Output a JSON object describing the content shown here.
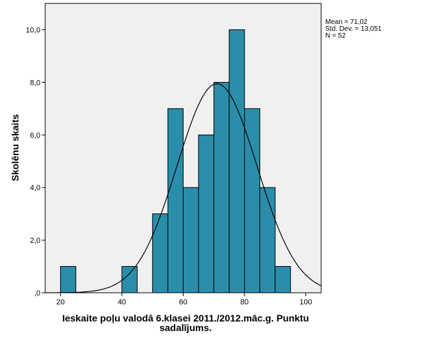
{
  "chart_data": {
    "type": "bar",
    "subtype": "histogram",
    "xlabel_lines": [
      "Ieskaite poļu valodā 6.klasei 2011./2012.māc.g. Punktu",
      "sadalījums."
    ],
    "ylabel": "Skolēnu skaits",
    "xlim": [
      15,
      105
    ],
    "ylim": [
      0,
      11
    ],
    "x_ticks": [
      20,
      40,
      60,
      80,
      100
    ],
    "x_tick_labels": [
      "20",
      "40",
      "60",
      "80",
      "100"
    ],
    "y_ticks": [
      0,
      2,
      4,
      6,
      8,
      10
    ],
    "y_tick_labels": [
      ",0",
      "2,0",
      "4,0",
      "6,0",
      "8,0",
      "10,0"
    ],
    "bin_width": 5,
    "bins": [
      {
        "start": 20,
        "end": 25,
        "count": 1
      },
      {
        "start": 40,
        "end": 45,
        "count": 1
      },
      {
        "start": 50,
        "end": 55,
        "count": 3
      },
      {
        "start": 55,
        "end": 60,
        "count": 7
      },
      {
        "start": 60,
        "end": 65,
        "count": 4
      },
      {
        "start": 65,
        "end": 70,
        "count": 6
      },
      {
        "start": 70,
        "end": 75,
        "count": 8
      },
      {
        "start": 75,
        "end": 80,
        "count": 10
      },
      {
        "start": 80,
        "end": 85,
        "count": 7
      },
      {
        "start": 85,
        "end": 90,
        "count": 4
      },
      {
        "start": 90,
        "end": 95,
        "count": 1
      }
    ],
    "normal_curve": {
      "mean": 71.02,
      "std": 13.051,
      "n": 52
    },
    "stats_labels": [
      "Mean = 71,02",
      "Std. Dev. = 13,051",
      "N = 52"
    ],
    "colors": {
      "plot_background": "#f0f0f0",
      "bar_fill": "#2a8eab",
      "bar_stroke": "#000000",
      "curve": "#000000"
    }
  }
}
